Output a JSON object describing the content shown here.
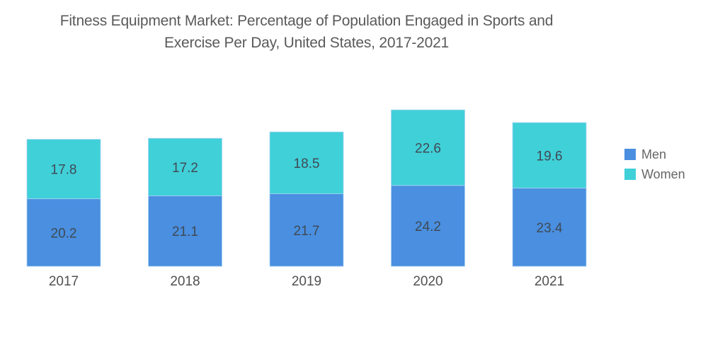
{
  "chart_data": {
    "type": "bar",
    "stacked": true,
    "title": "Fitness Equipment Market: Percentage of Population Engaged in Sports and Exercise Per Day, United States, 2017-2021",
    "title_lines": [
      "Fitness Equipment Market: Percentage of Population Engaged in Sports and",
      "Exercise Per Day, United States, 2017-2021"
    ],
    "categories": [
      "2017",
      "2018",
      "2019",
      "2020",
      "2021"
    ],
    "series": [
      {
        "name": "Men",
        "color": "#4a8fe0",
        "values": [
          20.2,
          21.1,
          21.7,
          24.2,
          23.4
        ]
      },
      {
        "name": "Women",
        "color": "#40d0d8",
        "values": [
          17.8,
          17.2,
          18.5,
          22.6,
          19.6
        ]
      }
    ],
    "xlabel": "",
    "ylabel": "",
    "ylim": [
      0,
      50
    ],
    "grid": false,
    "y_axis_visible": false,
    "data_labels": true,
    "legend_position": "right"
  }
}
